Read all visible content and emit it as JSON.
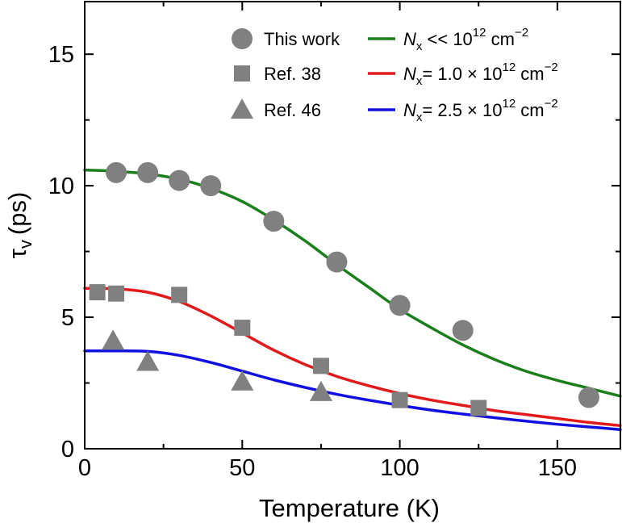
{
  "chart_data": {
    "type": "scatter",
    "title": "",
    "xlabel": "Temperature (K)",
    "ylabel_symbol": "τ",
    "ylabel_sub": "v",
    "ylabel_unit": "(ps)",
    "xlim": [
      0,
      170
    ],
    "ylim": [
      0,
      17
    ],
    "xticks": [
      0,
      50,
      100,
      150
    ],
    "yticks": [
      0,
      5,
      10,
      15
    ],
    "grid": false,
    "legend_position": "top-right",
    "series": [
      {
        "name": "This work",
        "marker": "circle",
        "color": "#808080",
        "x": [
          10,
          20,
          30,
          40,
          60,
          80,
          100,
          120,
          160
        ],
        "y": [
          10.5,
          10.5,
          10.2,
          10.0,
          8.65,
          7.1,
          5.45,
          4.5,
          1.95
        ]
      },
      {
        "name": "Ref. 38",
        "marker": "square",
        "color": "#808080",
        "x": [
          4,
          10,
          30,
          50,
          75,
          100,
          125
        ],
        "y": [
          5.95,
          5.9,
          5.85,
          4.6,
          3.15,
          1.85,
          1.55
        ]
      },
      {
        "name": "Ref. 46",
        "marker": "triangle",
        "color": "#808080",
        "x": [
          9,
          20,
          50,
          75
        ],
        "y": [
          4.1,
          3.3,
          2.55,
          2.15
        ]
      }
    ],
    "fits": [
      {
        "name": "N_x << 10^12 cm^-2",
        "label_parts": {
          "var": "N",
          "sub": "x",
          "rel": " << ",
          "mant": "10",
          "exp": "12",
          "unit": " cm",
          "unit_exp": "−2"
        },
        "color": "#1a7f1a",
        "x": [
          0,
          10,
          20,
          30,
          40,
          50,
          60,
          70,
          80,
          90,
          100,
          110,
          120,
          130,
          140,
          150,
          160,
          170
        ],
        "y": [
          10.6,
          10.55,
          10.45,
          10.25,
          9.9,
          9.4,
          8.7,
          7.9,
          7.0,
          6.15,
          5.3,
          4.6,
          3.95,
          3.4,
          2.95,
          2.6,
          2.3,
          2.0
        ]
      },
      {
        "name": "N_x = 1.0 × 10^12 cm^-2",
        "label_parts": {
          "var": "N",
          "sub": "x",
          "rel": "= 1.0 × ",
          "mant": "10",
          "exp": "12",
          "unit": " cm",
          "unit_exp": "−2"
        },
        "color": "#e31a1c",
        "x": [
          0,
          10,
          20,
          30,
          40,
          50,
          60,
          70,
          80,
          90,
          100,
          110,
          120,
          130,
          140,
          150,
          160,
          170
        ],
        "y": [
          6.1,
          6.08,
          5.95,
          5.6,
          5.05,
          4.4,
          3.75,
          3.2,
          2.75,
          2.4,
          2.1,
          1.85,
          1.65,
          1.45,
          1.3,
          1.15,
          1.0,
          0.88
        ]
      },
      {
        "name": "N_x = 2.5 × 10^12 cm^-2",
        "label_parts": {
          "var": "N",
          "sub": "x",
          "rel": "= 2.5 × ",
          "mant": "10",
          "exp": "12",
          "unit": " cm",
          "unit_exp": "−2"
        },
        "color": "#1010e0",
        "x": [
          0,
          10,
          20,
          30,
          40,
          50,
          60,
          70,
          80,
          90,
          100,
          110,
          120,
          130,
          140,
          150,
          160,
          170
        ],
        "y": [
          3.72,
          3.72,
          3.7,
          3.55,
          3.28,
          2.95,
          2.62,
          2.33,
          2.07,
          1.85,
          1.65,
          1.47,
          1.32,
          1.18,
          1.05,
          0.93,
          0.83,
          0.73
        ]
      }
    ]
  }
}
